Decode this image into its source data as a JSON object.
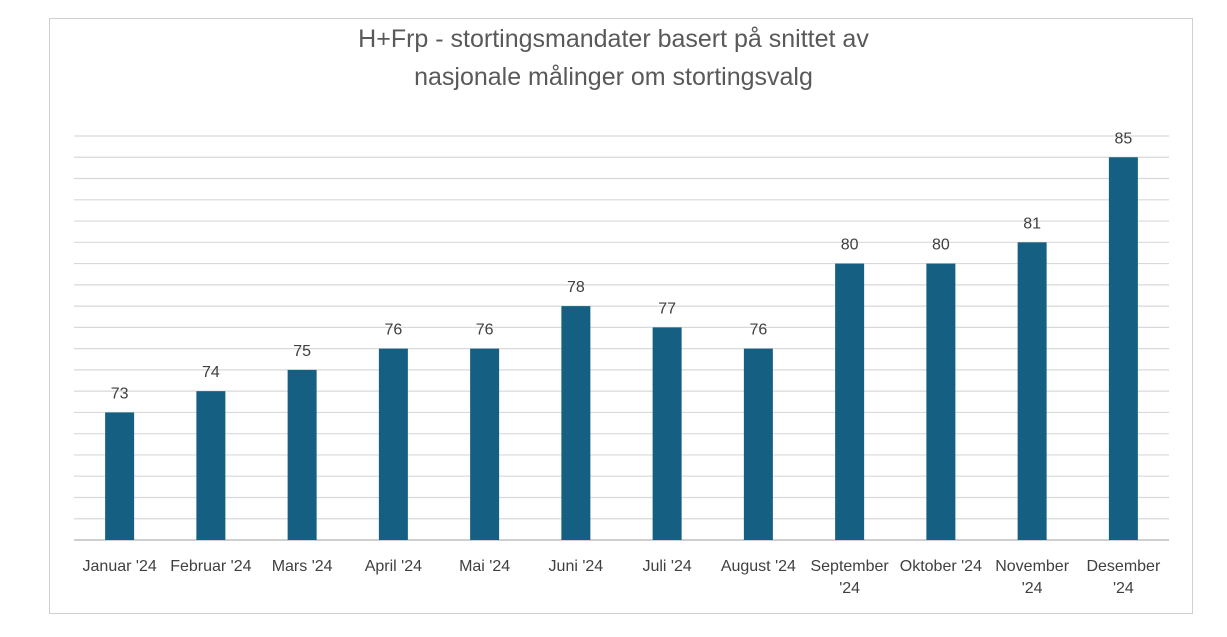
{
  "chart_data": {
    "type": "bar",
    "title_lines": [
      "H+Frp - stortingsmandater basert på snittet av",
      "nasjonale målinger om stortingsvalg"
    ],
    "categories": [
      [
        "Januar '24"
      ],
      [
        "Februar '24"
      ],
      [
        "Mars '24"
      ],
      [
        "April '24"
      ],
      [
        "Mai '24"
      ],
      [
        "Juni '24"
      ],
      [
        "Juli '24"
      ],
      [
        "August '24"
      ],
      [
        "September",
        "'24"
      ],
      [
        "Oktober '24"
      ],
      [
        "November",
        "'24"
      ],
      [
        "Desember",
        "'24"
      ]
    ],
    "values": [
      73,
      74,
      75,
      76,
      76,
      78,
      77,
      76,
      80,
      80,
      81,
      85
    ],
    "ylim": [
      67,
      86
    ],
    "grid": true,
    "bar_color": "#156082",
    "gridline_color": "#d9d9d9"
  }
}
